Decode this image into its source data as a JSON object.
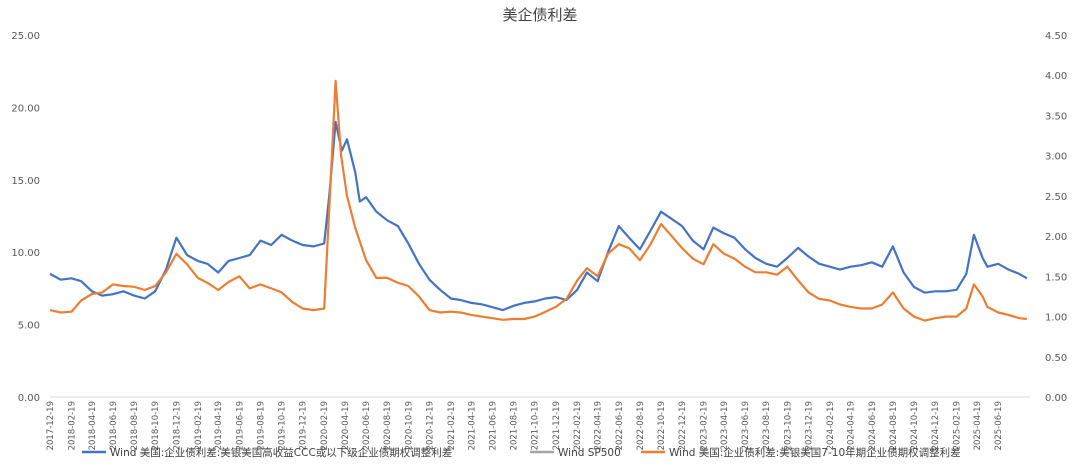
{
  "chart_data": {
    "type": "line",
    "title": "美企债利差",
    "grid": false,
    "legend_position": "bottom",
    "x_ticks": [
      "2017-12-19",
      "2018-02-19",
      "2018-04-19",
      "2018-06-19",
      "2018-08-19",
      "2018-10-19",
      "2018-12-19",
      "2019-02-19",
      "2019-04-19",
      "2019-06-19",
      "2019-08-19",
      "2019-10-19",
      "2019-12-19",
      "2020-02-19",
      "2020-04-19",
      "2020-06-19",
      "2020-08-19",
      "2020-10-19",
      "2020-12-19",
      "2021-02-19",
      "2021-04-19",
      "2021-06-19",
      "2021-08-19",
      "2021-10-19",
      "2021-12-19",
      "2022-02-19",
      "2022-04-19",
      "2022-06-19",
      "2022-08-19",
      "2022-10-19",
      "2022-12-19",
      "2023-02-19",
      "2023-04-19",
      "2023-06-19",
      "2023-08-19",
      "2023-10-19",
      "2023-12-19",
      "2024-02-19",
      "2024-04-19",
      "2024-06-19",
      "2024-08-19",
      "2024-10-19",
      "2024-12-19",
      "2025-02-19",
      "2025-04-19",
      "2025-06-19"
    ],
    "y_left": {
      "ticks": [
        "0.00",
        "5.00",
        "10.00",
        "15.00",
        "20.00",
        "25.00"
      ],
      "min": 0,
      "max": 25
    },
    "y_right": {
      "ticks": [
        "0.00",
        "0.50",
        "1.00",
        "1.50",
        "2.00",
        "2.50",
        "3.00",
        "3.50",
        "4.00",
        "4.50"
      ],
      "min": 0,
      "max": 4.5
    },
    "series": [
      {
        "name": "Wind 美国:企业债利差:美银美国高收益CCC或以下级企业债期权调整利差",
        "color": "#4472c4",
        "axis": "left",
        "points": [
          [
            "2017-12-19",
            8.5
          ],
          [
            "2018-01-19",
            8.1
          ],
          [
            "2018-02-19",
            8.2
          ],
          [
            "2018-03-19",
            8.0
          ],
          [
            "2018-04-19",
            7.3
          ],
          [
            "2018-05-19",
            7.0
          ],
          [
            "2018-06-19",
            7.1
          ],
          [
            "2018-07-19",
            7.3
          ],
          [
            "2018-08-19",
            7.0
          ],
          [
            "2018-09-19",
            6.8
          ],
          [
            "2018-10-19",
            7.3
          ],
          [
            "2018-11-19",
            8.8
          ],
          [
            "2018-12-19",
            11.0
          ],
          [
            "2019-01-19",
            9.8
          ],
          [
            "2019-02-19",
            9.4
          ],
          [
            "2019-03-19",
            9.2
          ],
          [
            "2019-04-19",
            8.6
          ],
          [
            "2019-05-19",
            9.4
          ],
          [
            "2019-06-19",
            9.6
          ],
          [
            "2019-07-19",
            9.8
          ],
          [
            "2019-08-19",
            10.8
          ],
          [
            "2019-09-19",
            10.5
          ],
          [
            "2019-10-19",
            11.2
          ],
          [
            "2019-11-19",
            10.8
          ],
          [
            "2019-12-19",
            10.5
          ],
          [
            "2020-01-19",
            10.4
          ],
          [
            "2020-02-19",
            10.6
          ],
          [
            "2020-03-05",
            14.0
          ],
          [
            "2020-03-23",
            19.0
          ],
          [
            "2020-04-10",
            17.0
          ],
          [
            "2020-04-25",
            17.8
          ],
          [
            "2020-05-19",
            15.5
          ],
          [
            "2020-06-01",
            13.5
          ],
          [
            "2020-06-19",
            13.8
          ],
          [
            "2020-07-19",
            12.8
          ],
          [
            "2020-08-19",
            12.2
          ],
          [
            "2020-09-19",
            11.8
          ],
          [
            "2020-10-19",
            10.6
          ],
          [
            "2020-11-19",
            9.2
          ],
          [
            "2020-12-19",
            8.1
          ],
          [
            "2021-01-19",
            7.4
          ],
          [
            "2021-02-19",
            6.8
          ],
          [
            "2021-03-19",
            6.7
          ],
          [
            "2021-04-19",
            6.5
          ],
          [
            "2021-05-19",
            6.4
          ],
          [
            "2021-06-19",
            6.2
          ],
          [
            "2021-07-19",
            6.0
          ],
          [
            "2021-08-19",
            6.3
          ],
          [
            "2021-09-19",
            6.5
          ],
          [
            "2021-10-19",
            6.6
          ],
          [
            "2021-11-19",
            6.8
          ],
          [
            "2021-12-19",
            6.9
          ],
          [
            "2022-01-19",
            6.7
          ],
          [
            "2022-02-19",
            7.4
          ],
          [
            "2022-03-19",
            8.6
          ],
          [
            "2022-04-19",
            8.0
          ],
          [
            "2022-05-19",
            10.0
          ],
          [
            "2022-06-19",
            11.8
          ],
          [
            "2022-07-19",
            11.0
          ],
          [
            "2022-08-19",
            10.2
          ],
          [
            "2022-09-19",
            11.5
          ],
          [
            "2022-10-19",
            12.8
          ],
          [
            "2022-11-19",
            12.3
          ],
          [
            "2022-12-19",
            11.8
          ],
          [
            "2023-01-19",
            10.8
          ],
          [
            "2023-02-19",
            10.2
          ],
          [
            "2023-03-19",
            11.7
          ],
          [
            "2023-04-19",
            11.3
          ],
          [
            "2023-05-19",
            11.0
          ],
          [
            "2023-06-19",
            10.2
          ],
          [
            "2023-07-19",
            9.6
          ],
          [
            "2023-08-19",
            9.2
          ],
          [
            "2023-09-19",
            9.0
          ],
          [
            "2023-10-19",
            9.6
          ],
          [
            "2023-11-19",
            10.3
          ],
          [
            "2023-12-19",
            9.7
          ],
          [
            "2024-01-19",
            9.2
          ],
          [
            "2024-02-19",
            9.0
          ],
          [
            "2024-03-19",
            8.8
          ],
          [
            "2024-04-19",
            9.0
          ],
          [
            "2024-05-19",
            9.1
          ],
          [
            "2024-06-19",
            9.3
          ],
          [
            "2024-07-19",
            9.0
          ],
          [
            "2024-08-19",
            10.4
          ],
          [
            "2024-09-19",
            8.6
          ],
          [
            "2024-10-19",
            7.6
          ],
          [
            "2024-11-19",
            7.2
          ],
          [
            "2024-12-19",
            7.3
          ],
          [
            "2025-01-19",
            7.3
          ],
          [
            "2025-02-19",
            7.4
          ],
          [
            "2025-03-19",
            8.5
          ],
          [
            "2025-04-10",
            11.2
          ],
          [
            "2025-05-05",
            9.6
          ],
          [
            "2025-05-19",
            9.0
          ],
          [
            "2025-06-19",
            9.2
          ],
          [
            "2025-07-19",
            8.8
          ],
          [
            "2025-08-19",
            8.5
          ],
          [
            "2025-09-10",
            8.2
          ]
        ]
      },
      {
        "name": "Wind SP500",
        "color": "#a5a5a5",
        "axis": "right",
        "points": []
      },
      {
        "name": "Wind 美国:企业债利差:美银美国7-10年期企业债期权调整利差",
        "color": "#ed7d31",
        "axis": "right",
        "points": [
          [
            "2017-12-19",
            1.08
          ],
          [
            "2018-01-19",
            1.05
          ],
          [
            "2018-02-19",
            1.06
          ],
          [
            "2018-03-19",
            1.2
          ],
          [
            "2018-04-19",
            1.28
          ],
          [
            "2018-05-19",
            1.3
          ],
          [
            "2018-06-19",
            1.4
          ],
          [
            "2018-07-19",
            1.38
          ],
          [
            "2018-08-19",
            1.37
          ],
          [
            "2018-09-19",
            1.33
          ],
          [
            "2018-10-19",
            1.38
          ],
          [
            "2018-11-19",
            1.55
          ],
          [
            "2018-12-19",
            1.78
          ],
          [
            "2019-01-19",
            1.65
          ],
          [
            "2019-02-19",
            1.48
          ],
          [
            "2019-03-19",
            1.42
          ],
          [
            "2019-04-19",
            1.33
          ],
          [
            "2019-05-19",
            1.43
          ],
          [
            "2019-06-19",
            1.5
          ],
          [
            "2019-07-19",
            1.35
          ],
          [
            "2019-08-19",
            1.4
          ],
          [
            "2019-09-19",
            1.35
          ],
          [
            "2019-10-19",
            1.3
          ],
          [
            "2019-11-19",
            1.18
          ],
          [
            "2019-12-19",
            1.1
          ],
          [
            "2020-01-19",
            1.08
          ],
          [
            "2020-02-19",
            1.1
          ],
          [
            "2020-03-10",
            2.8
          ],
          [
            "2020-03-23",
            3.93
          ],
          [
            "2020-04-08",
            3.0
          ],
          [
            "2020-04-25",
            2.5
          ],
          [
            "2020-05-19",
            2.1
          ],
          [
            "2020-06-19",
            1.7
          ],
          [
            "2020-07-19",
            1.48
          ],
          [
            "2020-08-19",
            1.48
          ],
          [
            "2020-09-19",
            1.42
          ],
          [
            "2020-10-19",
            1.38
          ],
          [
            "2020-11-19",
            1.25
          ],
          [
            "2020-12-19",
            1.08
          ],
          [
            "2021-01-19",
            1.05
          ],
          [
            "2021-02-19",
            1.06
          ],
          [
            "2021-03-19",
            1.05
          ],
          [
            "2021-04-19",
            1.02
          ],
          [
            "2021-05-19",
            1.0
          ],
          [
            "2021-06-19",
            0.98
          ],
          [
            "2021-07-19",
            0.96
          ],
          [
            "2021-08-19",
            0.97
          ],
          [
            "2021-09-19",
            0.97
          ],
          [
            "2021-10-19",
            1.0
          ],
          [
            "2021-11-19",
            1.06
          ],
          [
            "2021-12-19",
            1.12
          ],
          [
            "2022-01-19",
            1.22
          ],
          [
            "2022-02-19",
            1.45
          ],
          [
            "2022-03-19",
            1.6
          ],
          [
            "2022-04-19",
            1.5
          ],
          [
            "2022-05-19",
            1.78
          ],
          [
            "2022-06-19",
            1.9
          ],
          [
            "2022-07-19",
            1.85
          ],
          [
            "2022-08-19",
            1.7
          ],
          [
            "2022-09-19",
            1.9
          ],
          [
            "2022-10-19",
            2.15
          ],
          [
            "2022-11-19",
            2.0
          ],
          [
            "2022-12-19",
            1.85
          ],
          [
            "2023-01-19",
            1.72
          ],
          [
            "2023-02-19",
            1.65
          ],
          [
            "2023-03-19",
            1.9
          ],
          [
            "2023-04-19",
            1.78
          ],
          [
            "2023-05-19",
            1.72
          ],
          [
            "2023-06-19",
            1.62
          ],
          [
            "2023-07-19",
            1.55
          ],
          [
            "2023-08-19",
            1.55
          ],
          [
            "2023-09-19",
            1.52
          ],
          [
            "2023-10-19",
            1.62
          ],
          [
            "2023-11-19",
            1.45
          ],
          [
            "2023-12-19",
            1.3
          ],
          [
            "2024-01-19",
            1.22
          ],
          [
            "2024-02-19",
            1.2
          ],
          [
            "2024-03-19",
            1.15
          ],
          [
            "2024-04-19",
            1.12
          ],
          [
            "2024-05-19",
            1.1
          ],
          [
            "2024-06-19",
            1.1
          ],
          [
            "2024-07-19",
            1.15
          ],
          [
            "2024-08-19",
            1.3
          ],
          [
            "2024-09-19",
            1.1
          ],
          [
            "2024-10-19",
            1.0
          ],
          [
            "2024-11-19",
            0.95
          ],
          [
            "2024-12-19",
            0.98
          ],
          [
            "2025-01-19",
            1.0
          ],
          [
            "2025-02-19",
            1.0
          ],
          [
            "2025-03-19",
            1.1
          ],
          [
            "2025-04-10",
            1.4
          ],
          [
            "2025-05-05",
            1.25
          ],
          [
            "2025-05-19",
            1.12
          ],
          [
            "2025-06-19",
            1.05
          ],
          [
            "2025-07-19",
            1.02
          ],
          [
            "2025-08-19",
            0.98
          ],
          [
            "2025-09-10",
            0.97
          ]
        ]
      }
    ]
  }
}
